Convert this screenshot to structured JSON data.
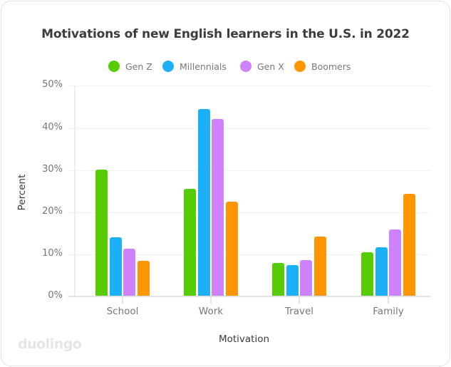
{
  "chart_data": {
    "type": "bar",
    "title": "Motivations of new English learners in the U.S. in 2022",
    "xlabel": "Motivation",
    "ylabel": "Percent",
    "ylim": [
      0,
      50
    ],
    "yticks": [
      "0%",
      "10%",
      "20%",
      "30%",
      "40%",
      "50%"
    ],
    "grid": true,
    "legend_position": "top",
    "categories": [
      "School",
      "Work",
      "Travel",
      "Family"
    ],
    "series": [
      {
        "name": "Gen Z",
        "color": "#58cc02",
        "values": [
          30,
          25.5,
          8,
          10.5
        ]
      },
      {
        "name": "Millennials",
        "color": "#1cb0f6",
        "values": [
          14,
          44.5,
          7.5,
          11.7
        ]
      },
      {
        "name": "Gen X",
        "color": "#ce82ff",
        "values": [
          11.3,
          42,
          8.6,
          15.8
        ]
      },
      {
        "name": "Boomers",
        "color": "#ff9600",
        "values": [
          8.4,
          22.5,
          14.2,
          24.4
        ]
      }
    ]
  },
  "branding": {
    "watermark": "duolingo"
  }
}
